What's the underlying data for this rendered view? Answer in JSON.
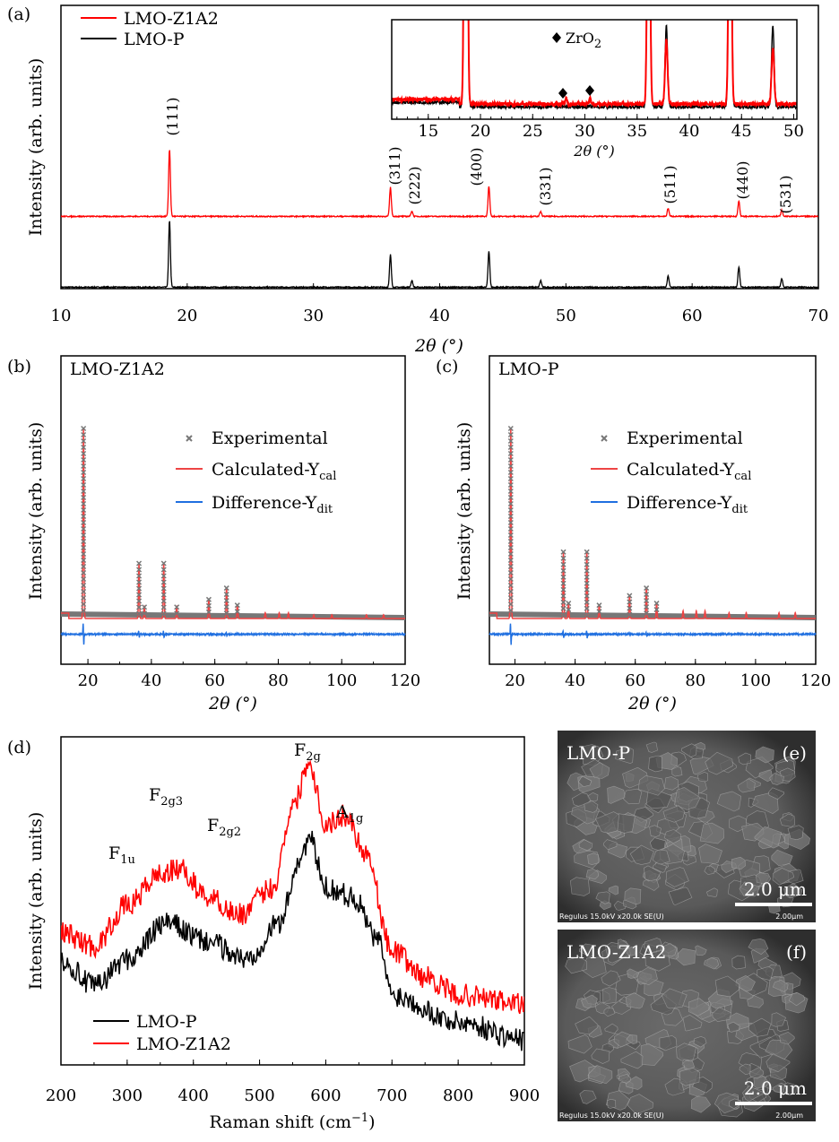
{
  "colors": {
    "red": "#ff0000",
    "black": "#000000",
    "calc": "#ee4444",
    "diff": "#1f6fe0",
    "exp": "#777777"
  },
  "chart_data": [
    {
      "id": "a",
      "type": "line",
      "panel_label": "(a)",
      "xlabel": "2θ (°)",
      "ylabel": "Intensity (arb. units)",
      "xlim": [
        10,
        70
      ],
      "xticks": [
        "10",
        "20",
        "30",
        "40",
        "50",
        "60",
        "70"
      ],
      "legend": [
        "LMO-Z1A2",
        "LMO-P"
      ],
      "peaks": [
        {
          "hkl": "(111)",
          "x": 18.6,
          "red": 1.0,
          "black": 1.0
        },
        {
          "hkl": "(311)",
          "x": 36.1,
          "red": 0.43,
          "black": 0.49
        },
        {
          "hkl": "(222)",
          "x": 37.8,
          "red": 0.08,
          "black": 0.1
        },
        {
          "hkl": "(400)",
          "x": 43.9,
          "red": 0.45,
          "black": 0.55
        },
        {
          "hkl": "(331)",
          "x": 48.0,
          "red": 0.07,
          "black": 0.1
        },
        {
          "hkl": "(511)",
          "x": 58.1,
          "red": 0.12,
          "black": 0.17
        },
        {
          "hkl": "(440)",
          "x": 63.7,
          "red": 0.23,
          "black": 0.31
        },
        {
          "hkl": "(531)",
          "x": 67.1,
          "red": 0.09,
          "black": 0.13
        }
      ],
      "inset": {
        "xlabel": "2θ (°)",
        "xlim": [
          11.5,
          50.3
        ],
        "xticks": [
          "15",
          "20",
          "25",
          "30",
          "35",
          "40",
          "45",
          "50"
        ],
        "annotation": "ZrO",
        "annotation_sub": "2",
        "zro2_peaks": [
          28.2,
          30.5
        ]
      }
    },
    {
      "id": "b",
      "type": "line",
      "panel_label": "(b)",
      "title": "LMO-Z1A2",
      "xlabel": "2θ (°)",
      "ylabel": "Intensity (arb. units)",
      "xlim": [
        11.5,
        120
      ],
      "xticks": [
        "20",
        "40",
        "60",
        "80",
        "100",
        "120"
      ],
      "legend": [
        {
          "text": "Experimental"
        },
        {
          "text": "Calculated-Y",
          "sub": "cal"
        },
        {
          "text": "Difference-Y",
          "sub": "dit"
        }
      ],
      "peaks": [
        [
          18.6,
          1.0
        ],
        [
          36.1,
          0.29
        ],
        [
          37.8,
          0.06
        ],
        [
          43.9,
          0.29
        ],
        [
          48.0,
          0.06
        ],
        [
          58.1,
          0.1
        ],
        [
          63.7,
          0.16
        ],
        [
          67.1,
          0.07
        ],
        [
          75.9,
          0.03
        ],
        [
          80.3,
          0.03
        ],
        [
          83.2,
          0.03
        ],
        [
          91.2,
          0.02
        ],
        [
          96.9,
          0.02
        ],
        [
          107.8,
          0.02
        ],
        [
          113.2,
          0.02
        ]
      ]
    },
    {
      "id": "c",
      "type": "line",
      "panel_label": "(c)",
      "title": "LMO-P",
      "xlabel": "2θ (°)",
      "ylabel": "Intensity (arb. units)",
      "xlim": [
        11.5,
        120
      ],
      "xticks": [
        "20",
        "40",
        "60",
        "80",
        "100",
        "120"
      ],
      "legend": [
        {
          "text": "Experimental"
        },
        {
          "text": "Calculated-Y",
          "sub": "cal"
        },
        {
          "text": "Difference-Y",
          "sub": "dit"
        }
      ],
      "peaks": [
        [
          18.6,
          1.0
        ],
        [
          36.1,
          0.35
        ],
        [
          37.8,
          0.08
        ],
        [
          43.9,
          0.35
        ],
        [
          48.0,
          0.07
        ],
        [
          58.1,
          0.12
        ],
        [
          63.7,
          0.16
        ],
        [
          67.1,
          0.08
        ],
        [
          75.9,
          0.04
        ],
        [
          80.3,
          0.04
        ],
        [
          83.2,
          0.04
        ],
        [
          91.2,
          0.03
        ],
        [
          96.9,
          0.03
        ],
        [
          107.8,
          0.03
        ],
        [
          113.2,
          0.03
        ]
      ]
    },
    {
      "id": "d",
      "type": "line",
      "panel_label": "(d)",
      "xlabel": "Raman shift (cm",
      "xlabel_sup": "−1",
      "xlabel_end": ")",
      "ylabel": "Intensity (arb. units)",
      "xlim": [
        200,
        900
      ],
      "ylim": [
        0,
        1
      ],
      "xticks": [
        "200",
        "300",
        "400",
        "500",
        "600",
        "700",
        "800",
        "900"
      ],
      "legend": [
        "LMO-P",
        "LMO-Z1A2"
      ],
      "modes": [
        {
          "label": "F",
          "sub": "1u"
        },
        {
          "label": "F",
          "sub": "2g3"
        },
        {
          "label": "F",
          "sub": "2g2"
        },
        {
          "label": "F",
          "sub": "2g"
        },
        {
          "label": "A",
          "sub": "1g"
        }
      ],
      "series": [
        {
          "name": "LMO-Z1A2",
          "x": [
            200,
            250,
            300,
            350,
            380,
            420,
            470,
            520,
            550,
            575,
            600,
            630,
            660,
            700,
            750,
            800,
            900
          ],
          "y": [
            0.404,
            0.363,
            0.486,
            0.582,
            0.596,
            0.514,
            0.459,
            0.541,
            0.787,
            0.923,
            0.732,
            0.76,
            0.65,
            0.35,
            0.268,
            0.213,
            0.186
          ]
        },
        {
          "name": "LMO-P",
          "x": [
            200,
            250,
            300,
            360,
            420,
            480,
            530,
            560,
            575,
            600,
            640,
            680,
            700,
            800,
            900
          ],
          "y": [
            0.322,
            0.24,
            0.322,
            0.432,
            0.377,
            0.322,
            0.432,
            0.623,
            0.691,
            0.541,
            0.514,
            0.377,
            0.213,
            0.131,
            0.077
          ]
        }
      ]
    }
  ],
  "sem": [
    {
      "panel_label": "(e)",
      "sample": "LMO-P",
      "scale_bar": "2.0 μm",
      "footer": "Regulus 15.0kV x20.0k SE(U)",
      "footer_scale": "2.00μm"
    },
    {
      "panel_label": "(f)",
      "sample": "LMO-Z1A2",
      "scale_bar": "2.0 μm",
      "footer": "Regulus 15.0kV x20.0k SE(U)",
      "footer_scale": "2.00μm"
    }
  ]
}
